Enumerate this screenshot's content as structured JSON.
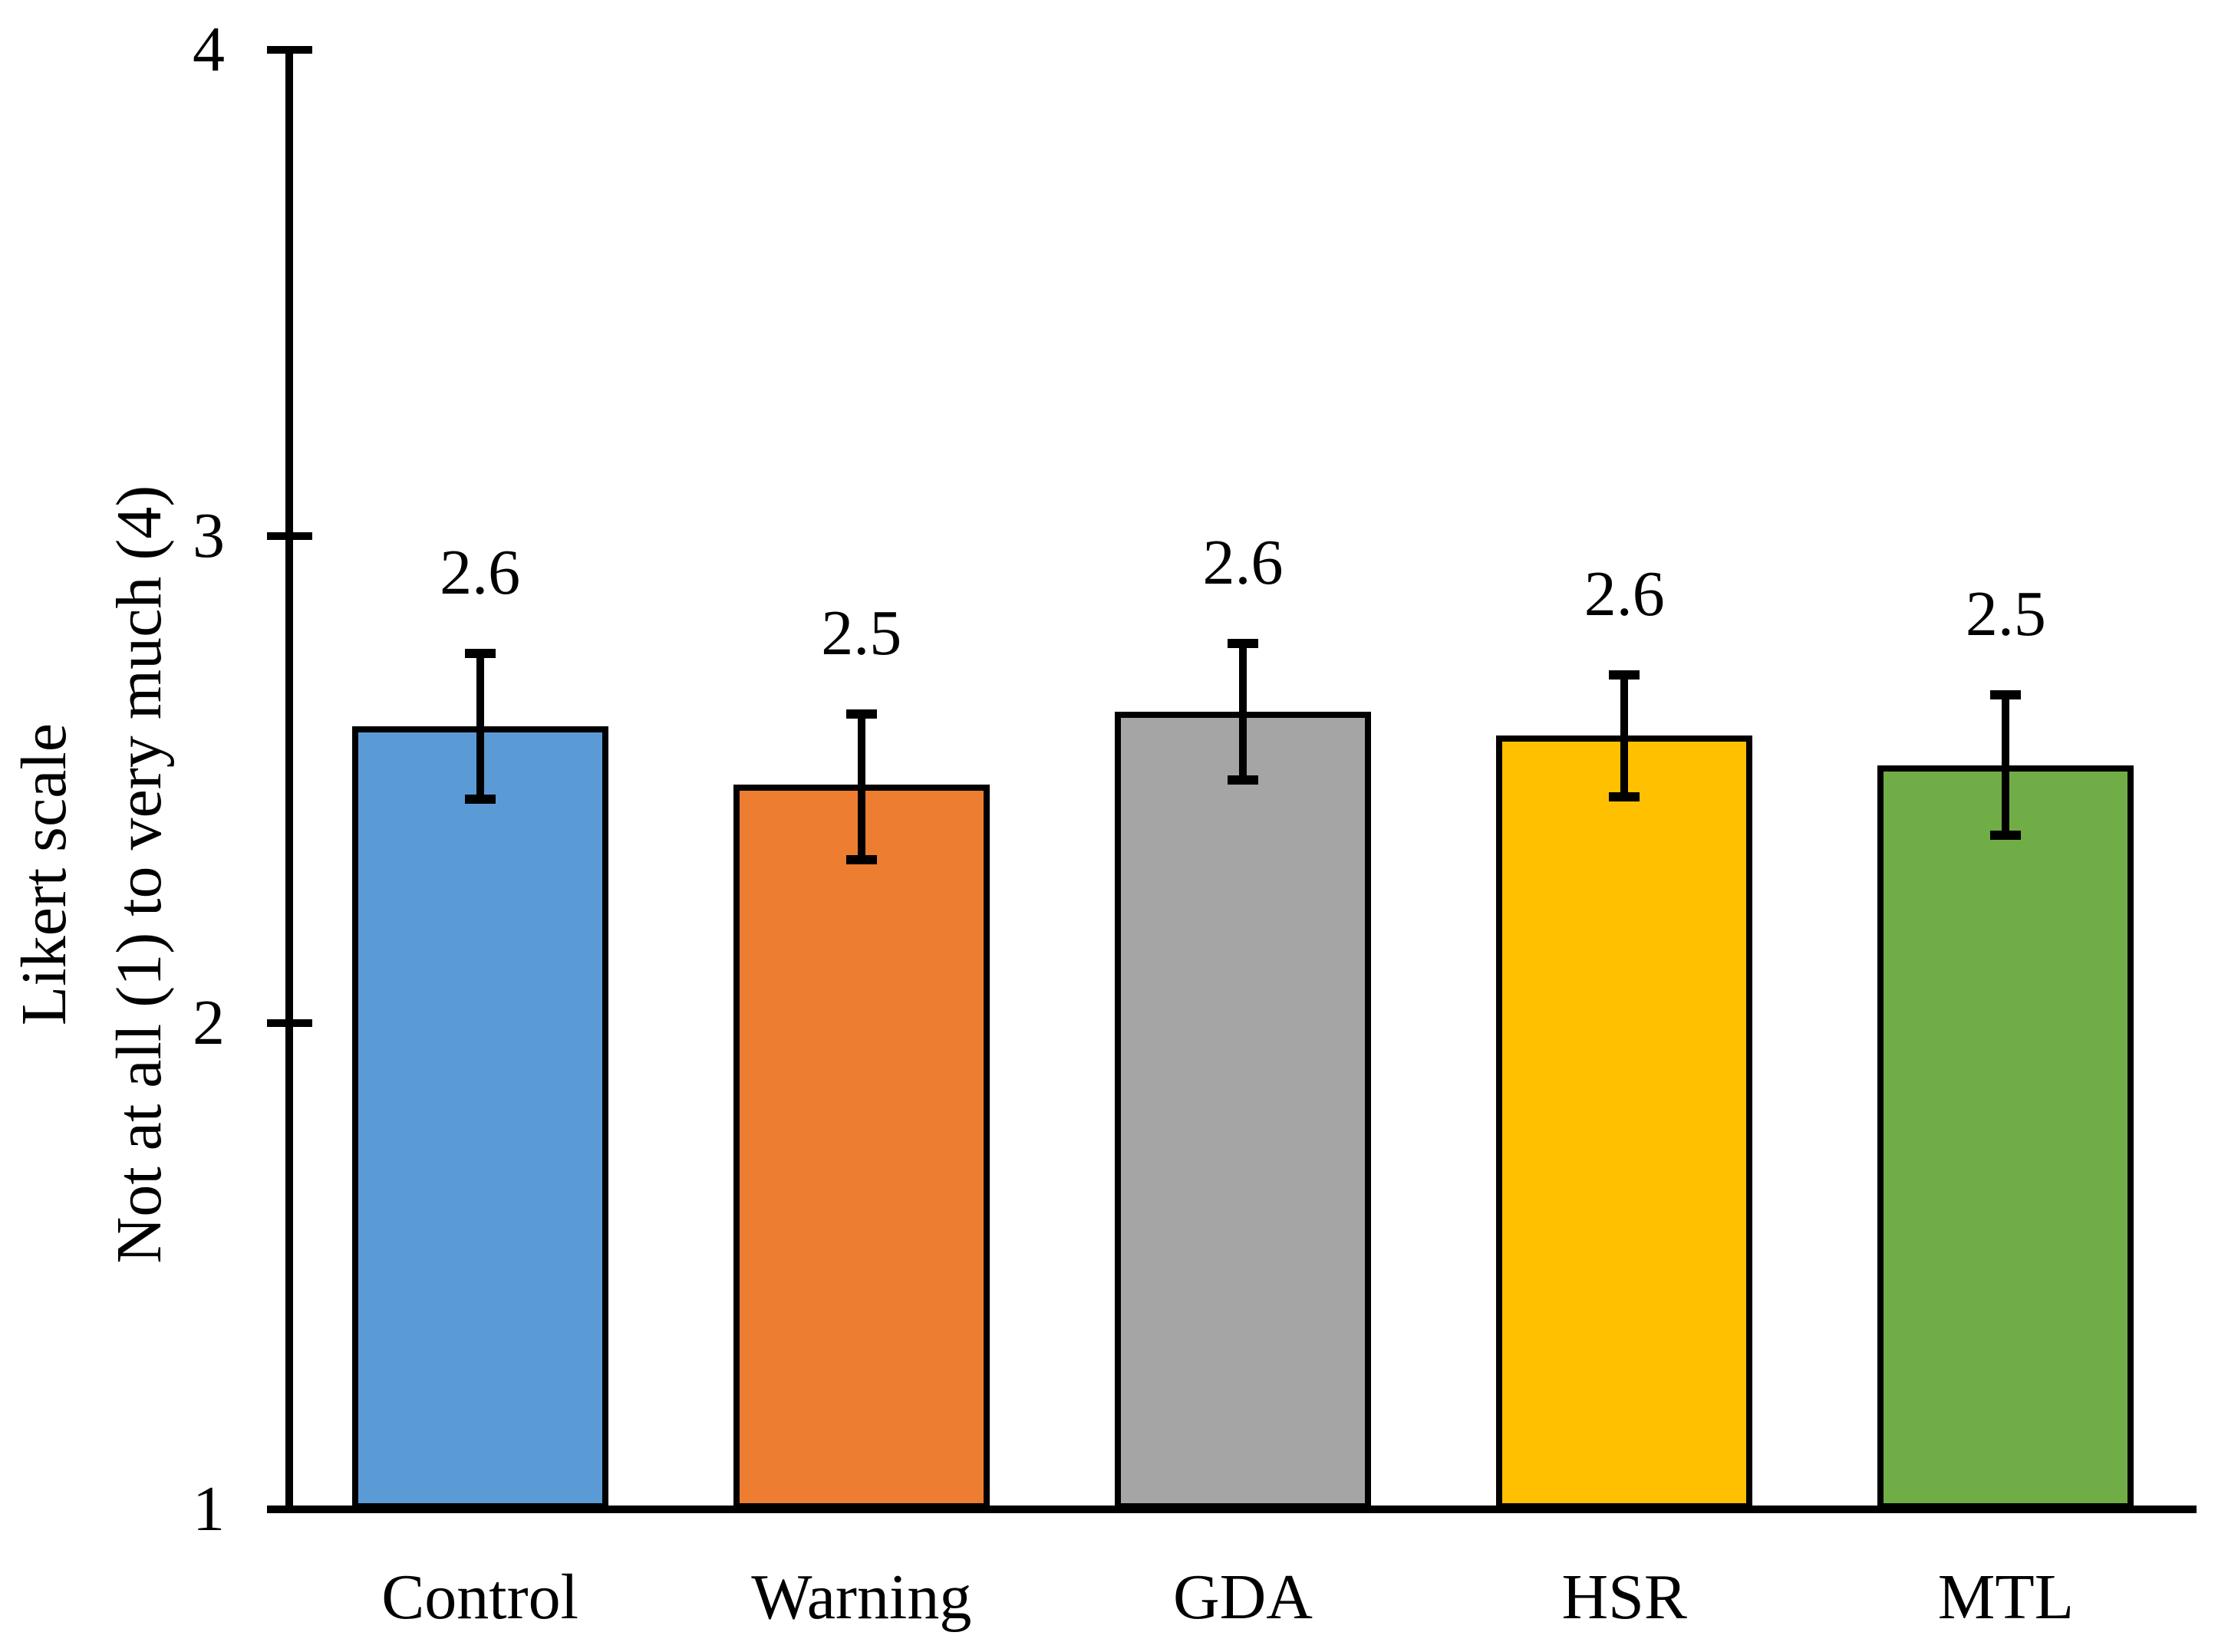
{
  "figure": {
    "background": "#FFFFFF",
    "axis_color": "#000000",
    "text_color": "#000000"
  },
  "y_axis": {
    "title_line1": "Likert scale",
    "title_line2": "Not at all (1) to very much (4)",
    "tick_labels": [
      "1",
      "2",
      "3",
      "4"
    ],
    "min": 1,
    "max": 4
  },
  "chart_data": {
    "type": "bar",
    "title": "",
    "xlabel": "",
    "ylabel": "Likert scale / Not at all (1) to very much (4)",
    "categories": [
      "Control",
      "Warning",
      "GDA",
      "HSR",
      "MTL"
    ],
    "values": [
      2.61,
      2.49,
      2.64,
      2.59,
      2.53
    ],
    "data_labels": [
      "2.6",
      "2.5",
      "2.6",
      "2.6",
      "2.5"
    ],
    "error_upper": [
      2.76,
      2.635,
      2.78,
      2.715,
      2.675
    ],
    "error_lower": [
      2.46,
      2.335,
      2.5,
      2.465,
      2.385
    ],
    "bar_colors": [
      "#5B9BD5",
      "#ED7D31",
      "#A5A5A5",
      "#FFC000",
      "#70AD47"
    ],
    "bar_border_color": "#000000",
    "ylim": [
      1,
      4
    ],
    "yticks": [
      1,
      2,
      3,
      4
    ],
    "grid": false,
    "legend": "none"
  }
}
